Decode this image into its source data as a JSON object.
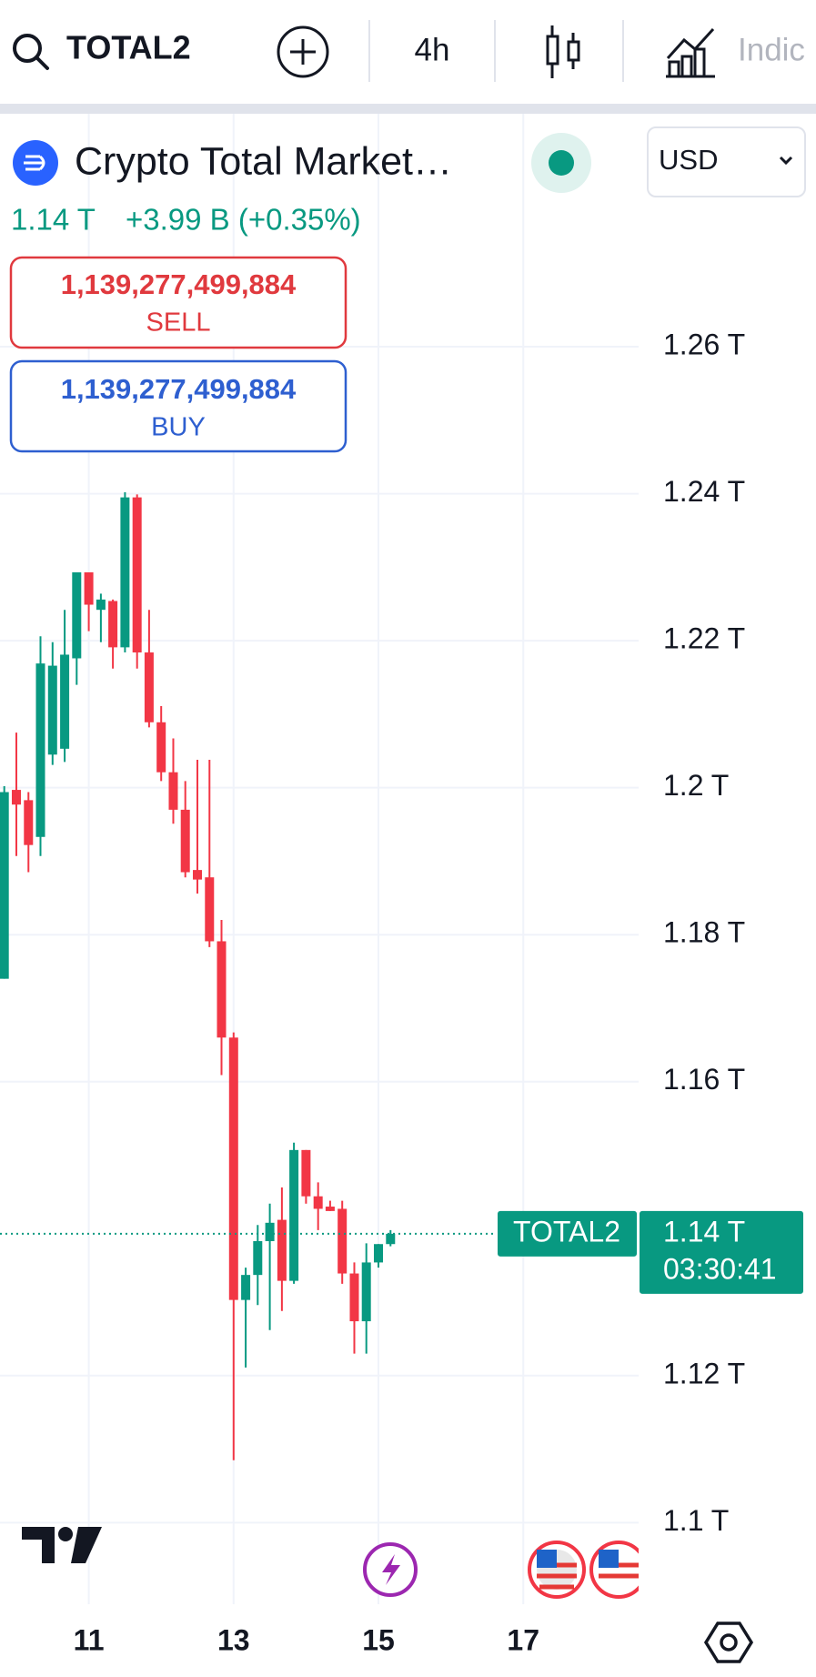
{
  "toolbar": {
    "symbol": "TOTAL2",
    "interval": "4h",
    "indicators": "Indic"
  },
  "header": {
    "name": "Crypto Total Market…",
    "currency": "USD",
    "last": "1.14 T",
    "change": "+3.99 B (+0.35%)"
  },
  "trade": {
    "sell_price": "1,139,277,499,884",
    "sell": "SELL",
    "buy_price": "1,139,277,499,884",
    "buy": "BUY"
  },
  "chart_data": {
    "type": "candlestick",
    "x": [
      9.833,
      10.0,
      10.167,
      10.333,
      10.5,
      10.667,
      10.833,
      11.0,
      11.167,
      11.333,
      11.5,
      11.667,
      11.833,
      12.0,
      12.167,
      12.333,
      12.5,
      12.667,
      12.833,
      13.0,
      13.167,
      13.333,
      13.5,
      13.667,
      13.833,
      14.0,
      14.167,
      14.333,
      14.5,
      14.667,
      14.833,
      15.0,
      15.167
    ],
    "open": [
      1.174,
      1.1997,
      1.1983,
      1.1933,
      1.2045,
      1.2053,
      1.2176,
      1.2293,
      1.2242,
      1.2254,
      1.2191,
      1.2395,
      1.2184,
      1.2089,
      1.2021,
      1.197,
      1.1888,
      1.1878,
      1.1791,
      1.166,
      1.1303,
      1.1337,
      1.1383,
      1.1412,
      1.1329,
      1.1507,
      1.1444,
      1.143,
      1.1427,
      1.1339,
      1.1274,
      1.1354,
      1.1379
    ],
    "high": [
      1.2002,
      1.2075,
      1.1994,
      1.2206,
      1.2198,
      1.2242,
      1.2293,
      1.2293,
      1.2264,
      1.2256,
      1.2402,
      1.2399,
      1.2242,
      1.2111,
      1.2067,
      1.2009,
      1.2038,
      1.2038,
      1.182,
      1.1667,
      1.1347,
      1.1405,
      1.1434,
      1.1456,
      1.1517,
      1.1507,
      1.1463,
      1.1438,
      1.1438,
      1.1354,
      1.138,
      1.1379,
      1.1398
    ],
    "low": [
      1.174,
      1.1907,
      1.1885,
      1.1907,
      1.2031,
      1.2035,
      1.214,
      1.2213,
      1.2198,
      1.2162,
      1.2184,
      1.2162,
      1.2082,
      1.2009,
      1.1951,
      1.1878,
      1.1856,
      1.1783,
      1.1609,
      1.1085,
      1.1211,
      1.1296,
      1.1262,
      1.1288,
      1.1325,
      1.1434,
      1.1398,
      1.1424,
      1.1325,
      1.123,
      1.123,
      1.1347,
      1.1376
    ],
    "close": [
      1.1994,
      1.1977,
      1.1922,
      1.2169,
      1.2166,
      1.2181,
      1.2293,
      1.2249,
      1.2256,
      1.2191,
      1.2395,
      1.2184,
      1.2089,
      1.2021,
      1.197,
      1.1885,
      1.1875,
      1.1791,
      1.166,
      1.1303,
      1.1337,
      1.1383,
      1.1408,
      1.1329,
      1.1507,
      1.1444,
      1.1427,
      1.1424,
      1.1339,
      1.1274,
      1.1354,
      1.1379,
      1.1393
    ],
    "up_color": "#089981",
    "down_color": "#f23645",
    "ylim": [
      1.0889,
      1.2917
    ],
    "yticks": [
      {
        "value": 1.1,
        "label": "1.1 T"
      },
      {
        "value": 1.12,
        "label": "1.12 T"
      },
      {
        "value": 1.16,
        "label": "1.16 T"
      },
      {
        "value": 1.18,
        "label": "1.18 T"
      },
      {
        "value": 1.2,
        "label": "1.2 T"
      },
      {
        "value": 1.22,
        "label": "1.22 T"
      },
      {
        "value": 1.24,
        "label": "1.24 T"
      },
      {
        "value": 1.26,
        "label": "1.26 T"
      }
    ],
    "xlim": [
      9.774,
      18.593
    ],
    "xticks": [
      11,
      13,
      15,
      17
    ],
    "grid": true,
    "symbol_label": "TOTAL2",
    "price_label": {
      "value": 1.1393,
      "label": "1.14 T"
    },
    "countdown": "03:30:41"
  }
}
